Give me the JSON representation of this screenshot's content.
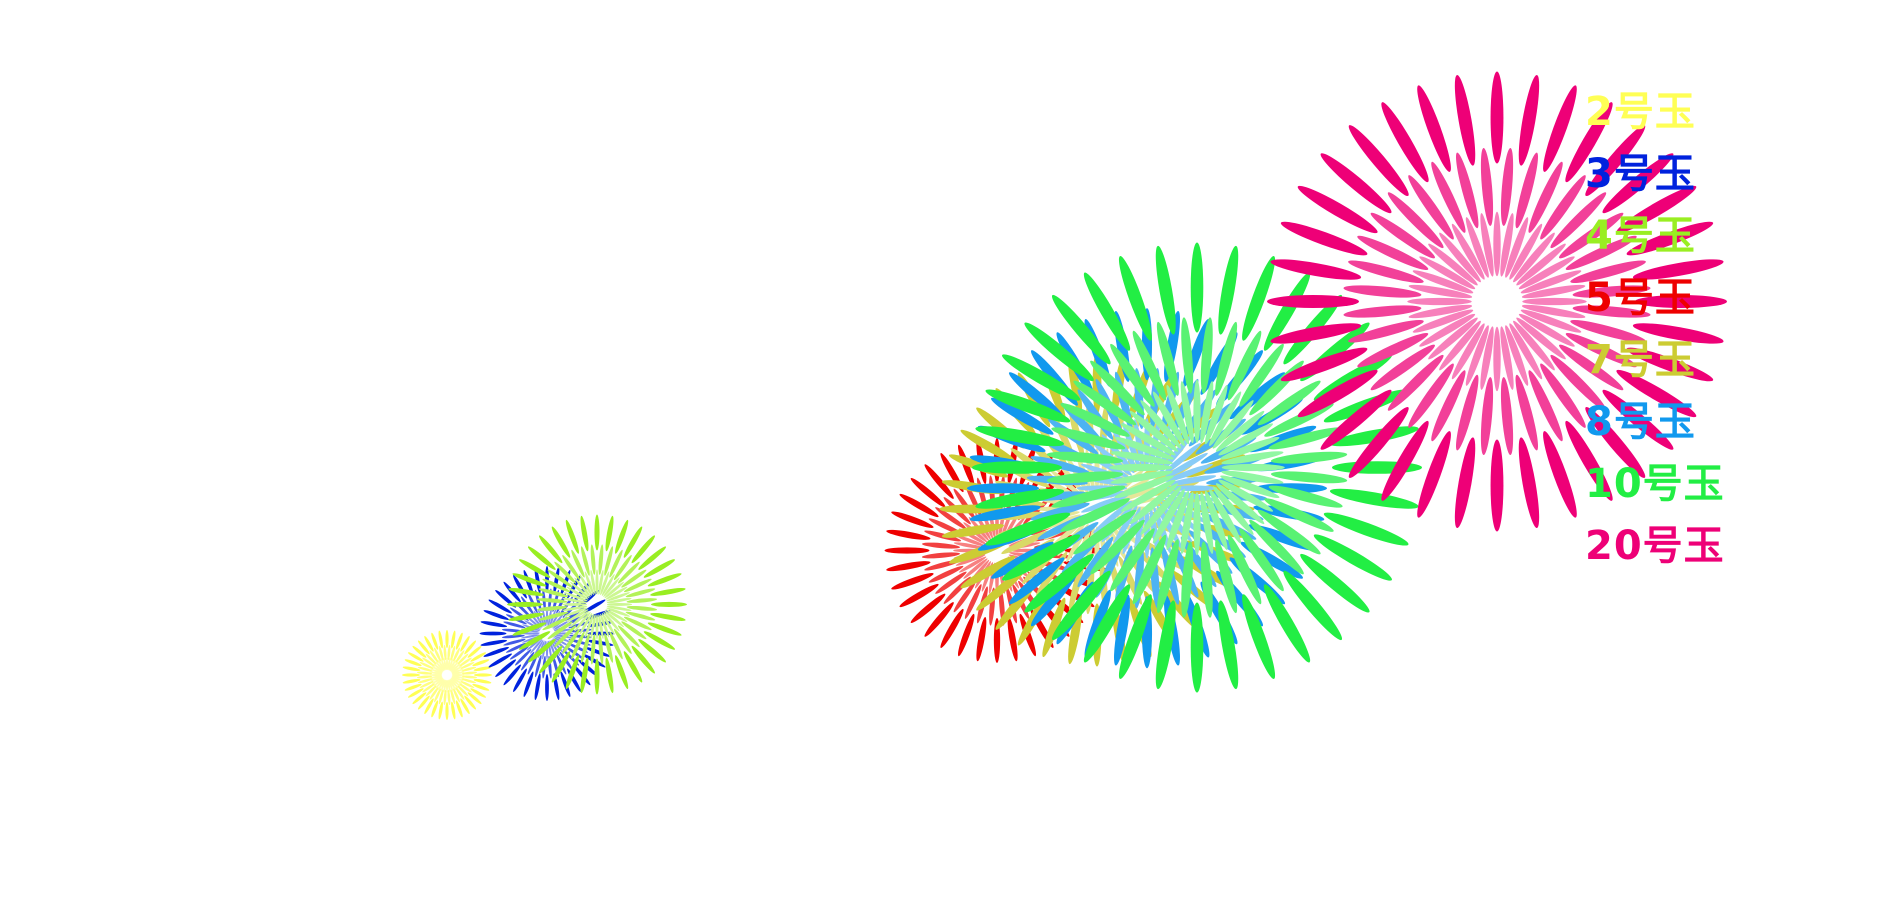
{
  "chart_data": {
    "type": "scatter",
    "title": "",
    "xlabel": "",
    "ylabel": "",
    "legend_position": "right",
    "series": [
      {
        "name": "2号玉",
        "color": "#ffff55",
        "x": 1.0,
        "y": 1.0,
        "size": 2
      },
      {
        "name": "3号玉",
        "color": "#0022dd",
        "x": 2.0,
        "y": 2.0,
        "size": 3
      },
      {
        "name": "4号玉",
        "color": "#99ee22",
        "x": 2.5,
        "y": 2.7,
        "size": 4
      },
      {
        "name": "5号玉",
        "color": "#ee0000",
        "x": 6.5,
        "y": 4.0,
        "size": 5
      },
      {
        "name": "7号玉",
        "color": "#cccc33",
        "x": 7.5,
        "y": 5.0,
        "size": 7
      },
      {
        "name": "8号玉",
        "color": "#1199ee",
        "x": 8.0,
        "y": 5.5,
        "size": 8
      },
      {
        "name": "10号玉",
        "color": "#22ee44",
        "x": 8.5,
        "y": 6.0,
        "size": 10
      },
      {
        "name": "20号玉",
        "color": "#ee0077",
        "x": 11.5,
        "y": 10.0,
        "size": 20
      }
    ]
  }
}
